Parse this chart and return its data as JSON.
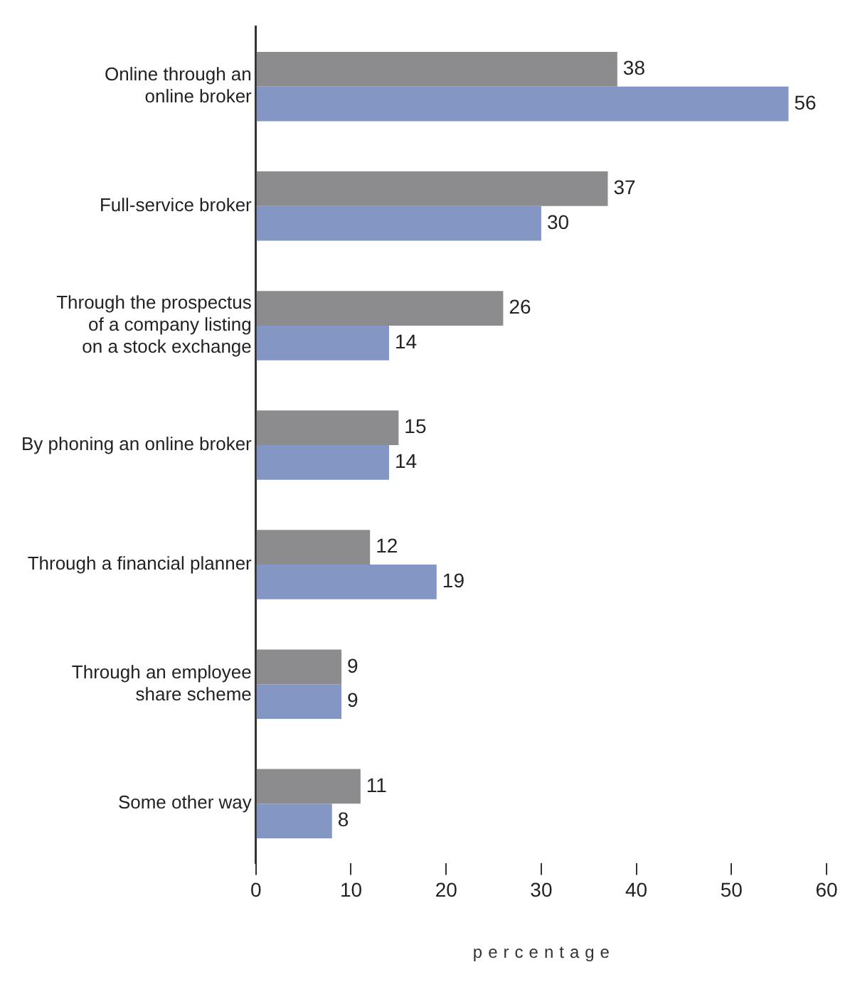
{
  "chart_data": {
    "type": "bar",
    "orientation": "horizontal",
    "xlabel": "percentage",
    "categories": [
      "Online through an\nonline broker",
      "Full-service broker",
      "Through the prospectus\nof a company listing\non a stock exchange",
      "By phoning an online broker",
      "Through a financial planner",
      "Through an employee\nshare scheme",
      "Some other way"
    ],
    "series": [
      {
        "color": "#8c8c8e",
        "values": [
          38,
          37,
          26,
          15,
          12,
          9,
          11
        ]
      },
      {
        "color": "#8497c4",
        "values": [
          56,
          30,
          14,
          14,
          19,
          9,
          8
        ]
      }
    ],
    "xlim": [
      0,
      60
    ],
    "xticks": [
      0,
      10,
      20,
      30,
      40,
      50,
      60
    ],
    "data_labels": true,
    "grid": false,
    "legend": false
  }
}
